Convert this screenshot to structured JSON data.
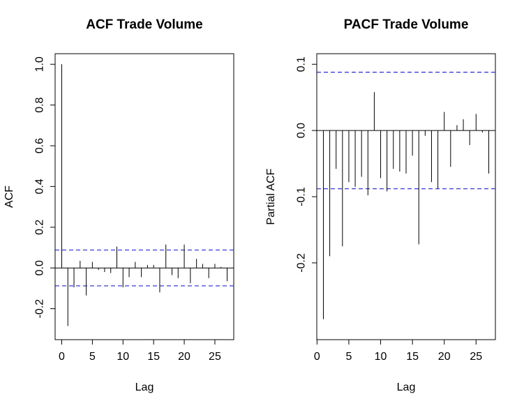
{
  "chart_data": [
    {
      "type": "bar",
      "title": "ACF Trade Volume",
      "xlabel": "Lag",
      "ylabel": "ACF",
      "xlim": [
        0,
        27
      ],
      "ylim": [
        -0.3,
        1.0
      ],
      "xticks": [
        0,
        5,
        10,
        15,
        20,
        25
      ],
      "xtick_labels": [
        "0",
        "5",
        "10",
        "15",
        "20",
        "25"
      ],
      "yticks": [
        -0.2,
        0.0,
        0.2,
        0.4,
        0.6,
        0.8,
        1.0
      ],
      "ytick_labels": [
        "-0.2",
        "0.0",
        "0.2",
        "0.4",
        "0.6",
        "0.8",
        "1.0"
      ],
      "x": [
        0,
        1,
        2,
        3,
        4,
        5,
        6,
        7,
        8,
        9,
        10,
        11,
        12,
        13,
        14,
        15,
        16,
        17,
        18,
        19,
        20,
        21,
        22,
        23,
        24,
        25,
        26,
        27
      ],
      "values": [
        1.0,
        -0.285,
        -0.095,
        0.035,
        -0.135,
        0.03,
        -0.01,
        -0.02,
        -0.025,
        0.105,
        -0.095,
        -0.045,
        0.03,
        -0.045,
        0.015,
        0.015,
        -0.12,
        0.115,
        -0.035,
        -0.05,
        0.115,
        -0.075,
        0.045,
        0.02,
        -0.05,
        0.02,
        0.005,
        -0.065
      ],
      "ci": 0.088,
      "ci_color": "#3b3bd6",
      "grid": false
    },
    {
      "type": "bar",
      "title": "PACF Trade Volume",
      "xlabel": "Lag",
      "ylabel": "Partial ACF",
      "xlim": [
        1,
        27
      ],
      "ylim": [
        -0.3,
        0.1
      ],
      "xticks": [
        0,
        5,
        10,
        15,
        20,
        25
      ],
      "xtick_labels": [
        "0",
        "5",
        "10",
        "15",
        "20",
        "25"
      ],
      "yticks": [
        -0.2,
        -0.1,
        0.0,
        0.1
      ],
      "ytick_labels": [
        "-0.2",
        "-0.1",
        "0.0",
        "0.1"
      ],
      "x": [
        1,
        2,
        3,
        4,
        5,
        6,
        7,
        8,
        9,
        10,
        11,
        12,
        13,
        14,
        15,
        16,
        17,
        18,
        19,
        20,
        21,
        22,
        23,
        24,
        25,
        26,
        27
      ],
      "values": [
        -0.285,
        -0.19,
        -0.058,
        -0.175,
        -0.078,
        -0.085,
        -0.07,
        -0.098,
        0.058,
        -0.072,
        -0.092,
        -0.058,
        -0.062,
        -0.065,
        -0.038,
        -0.172,
        -0.008,
        -0.078,
        -0.088,
        0.028,
        -0.055,
        0.008,
        0.017,
        -0.022,
        0.025,
        -0.003,
        -0.065
      ],
      "ci": 0.088,
      "ci_color": "#3b3bd6",
      "grid": false
    }
  ]
}
